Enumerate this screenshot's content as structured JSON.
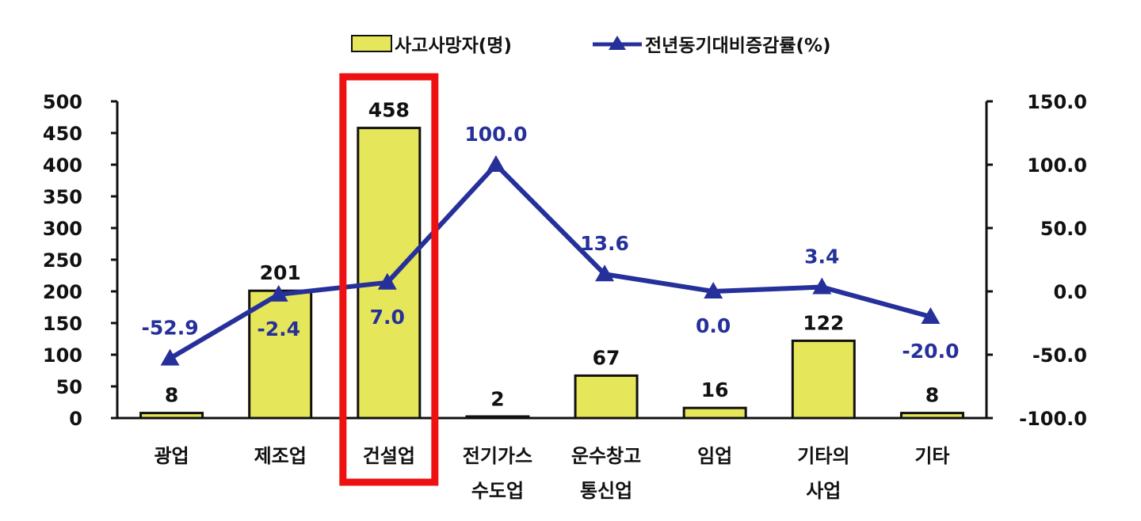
{
  "chart_data": {
    "type": "bar+line",
    "categories": [
      [
        "광업"
      ],
      [
        "제조업"
      ],
      [
        "건설업"
      ],
      [
        "전기가스",
        "수도업"
      ],
      [
        "운수창고",
        "통신업"
      ],
      [
        "임업"
      ],
      [
        "기타의",
        "사업"
      ],
      [
        "기타"
      ]
    ],
    "series": [
      {
        "name": "사고사망자(명)",
        "type": "bar",
        "axis": "left",
        "values": [
          8,
          201,
          458,
          2,
          67,
          16,
          122,
          8
        ],
        "labels": [
          "8",
          "201",
          "458",
          "2",
          "67",
          "16",
          "122",
          "8"
        ]
      },
      {
        "name": "전년동기대비증감률(%)",
        "type": "line",
        "axis": "right",
        "values": [
          -52.9,
          -2.4,
          7.0,
          100.0,
          13.6,
          0.0,
          3.4,
          -20.0
        ],
        "labels": [
          "-52.9",
          "-2.4",
          "7.0",
          "100.0",
          "13.6",
          "0.0",
          "3.4",
          "-20.0"
        ]
      }
    ],
    "y_left": {
      "min": 0,
      "max": 500,
      "ticks": [
        "0",
        "50",
        "100",
        "150",
        "200",
        "250",
        "300",
        "350",
        "400",
        "450",
        "500"
      ]
    },
    "y_right": {
      "min": -100,
      "max": 150,
      "ticks": [
        "-100.0",
        "-50.0",
        "0.0",
        "50.0",
        "100.0",
        "150.0"
      ]
    },
    "highlight_category": 2,
    "legend_position": "top-center",
    "grid": false
  },
  "colors": {
    "bar_fill": "#e6e65a",
    "bar_stroke": "#111111",
    "line": "#26309a",
    "label_line": "#26309a",
    "highlight": "#ee1111",
    "axis": "#111111"
  }
}
